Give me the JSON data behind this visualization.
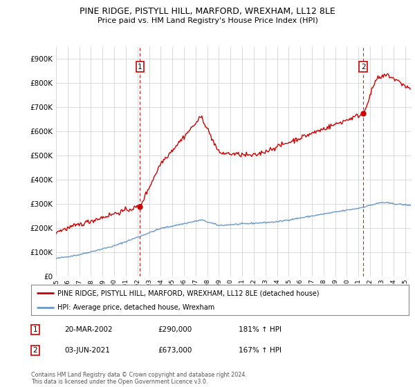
{
  "title": "PINE RIDGE, PISTYLL HILL, MARFORD, WREXHAM, LL12 8LE",
  "subtitle": "Price paid vs. HM Land Registry's House Price Index (HPI)",
  "hpi_label": "HPI: Average price, detached house, Wrexham",
  "property_label": "PINE RIDGE, PISTYLL HILL, MARFORD, WREXHAM, LL12 8LE (detached house)",
  "annotation1": {
    "num": "1",
    "date": "20-MAR-2002",
    "price": "£290,000",
    "pct": "181% ↑ HPI"
  },
  "annotation2": {
    "num": "2",
    "date": "03-JUN-2021",
    "price": "£673,000",
    "pct": "167% ↑ HPI"
  },
  "footer": "Contains HM Land Registry data © Crown copyright and database right 2024.\nThis data is licensed under the Open Government Licence v3.0.",
  "property_color": "#cc0000",
  "hpi_color": "#6699cc",
  "vline_color": "#cc0000",
  "ylim": [
    0,
    950000
  ],
  "yticks": [
    0,
    100000,
    200000,
    300000,
    400000,
    500000,
    600000,
    700000,
    800000,
    900000
  ],
  "ytick_labels": [
    "£0",
    "£100K",
    "£200K",
    "£300K",
    "£400K",
    "£500K",
    "£600K",
    "£700K",
    "£800K",
    "£900K"
  ],
  "sale1_x": 2002.22,
  "sale1_y": 290000,
  "sale2_x": 2021.42,
  "sale2_y": 673000,
  "background_color": "#ffffff",
  "grid_color": "#cccccc",
  "xlim_start": 1995,
  "xlim_end": 2025.5
}
